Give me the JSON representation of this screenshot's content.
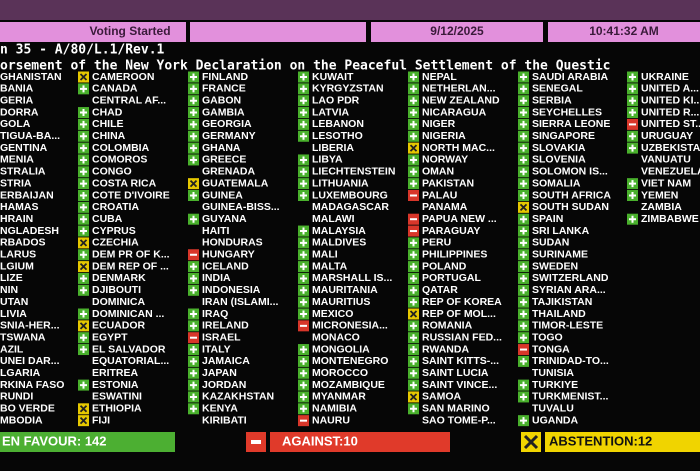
{
  "header": {
    "status": "Voting Started",
    "date": "9/12/2025",
    "time": "10:41:32 AM"
  },
  "item": "n 35 - A/80/L.1/Rev.1",
  "title": "orsement of the New York Declaration on the Peaceful Settlement of the Questic",
  "columns": [
    [
      {
        "name": "GHANISTAN"
      },
      {
        "name": "BANIA"
      },
      {
        "name": "GERIA"
      },
      {
        "name": "DORRA"
      },
      {
        "name": "GOLA"
      },
      {
        "name": "TIGUA-BA..."
      },
      {
        "name": "GENTINA"
      },
      {
        "name": "MENIA"
      },
      {
        "name": "STRALIA"
      },
      {
        "name": "STRIA"
      },
      {
        "name": "ERBAIJAN"
      },
      {
        "name": "HAMAS"
      },
      {
        "name": "HRAIN"
      },
      {
        "name": "NGLADESH"
      },
      {
        "name": "RBADOS"
      },
      {
        "name": "LARUS"
      },
      {
        "name": "LGIUM"
      },
      {
        "name": "LIZE"
      },
      {
        "name": "NIN"
      },
      {
        "name": "UTAN"
      },
      {
        "name": "LIVIA"
      },
      {
        "name": "SNIA-HER..."
      },
      {
        "name": "TSWANA"
      },
      {
        "name": "AZIL"
      },
      {
        "name": "UNEI DAR..."
      },
      {
        "name": "LGARIA"
      },
      {
        "name": "RKINA FASO"
      },
      {
        "name": "RUNDI"
      },
      {
        "name": "BO VERDE"
      },
      {
        "name": "MBODIA"
      }
    ],
    [
      {
        "name": "CAMEROON",
        "v": "A"
      },
      {
        "name": "CANADA",
        "v": "Y"
      },
      {
        "name": "CENTRAL AF..."
      },
      {
        "name": "CHAD",
        "v": "Y"
      },
      {
        "name": "CHILE",
        "v": "Y"
      },
      {
        "name": "CHINA",
        "v": "Y"
      },
      {
        "name": "COLOMBIA",
        "v": "Y"
      },
      {
        "name": "COMOROS",
        "v": "Y"
      },
      {
        "name": "CONGO",
        "v": "Y"
      },
      {
        "name": "COSTA RICA",
        "v": "Y"
      },
      {
        "name": "COTE D'IVOIRE",
        "v": "Y"
      },
      {
        "name": "CROATIA",
        "v": "Y"
      },
      {
        "name": "CUBA",
        "v": "Y"
      },
      {
        "name": "CYPRUS",
        "v": "Y"
      },
      {
        "name": "CZECHIA",
        "v": "A"
      },
      {
        "name": "DEM PR OF K...",
        "v": "Y"
      },
      {
        "name": "DEM REP OF ...",
        "v": "A"
      },
      {
        "name": "DENMARK",
        "v": "Y"
      },
      {
        "name": "DJIBOUTI",
        "v": "Y"
      },
      {
        "name": "DOMINICA"
      },
      {
        "name": "DOMINICAN ...",
        "v": "Y"
      },
      {
        "name": "ECUADOR",
        "v": "A"
      },
      {
        "name": "EGYPT",
        "v": "Y"
      },
      {
        "name": "EL SALVADOR",
        "v": "Y"
      },
      {
        "name": "EQUATORIAL..."
      },
      {
        "name": "ERITREA"
      },
      {
        "name": "ESTONIA",
        "v": "Y"
      },
      {
        "name": "ESWATINI"
      },
      {
        "name": "ETHIOPIA",
        "v": "A"
      },
      {
        "name": "FIJI",
        "v": "A"
      }
    ],
    [
      {
        "name": "FINLAND",
        "v": "Y"
      },
      {
        "name": "FRANCE",
        "v": "Y"
      },
      {
        "name": "GABON",
        "v": "Y"
      },
      {
        "name": "GAMBIA",
        "v": "Y"
      },
      {
        "name": "GEORGIA",
        "v": "Y"
      },
      {
        "name": "GERMANY",
        "v": "Y"
      },
      {
        "name": "GHANA",
        "v": "Y"
      },
      {
        "name": "GREECE",
        "v": "Y"
      },
      {
        "name": "GRENADA"
      },
      {
        "name": "GUATEMALA",
        "v": "A"
      },
      {
        "name": "GUINEA",
        "v": "Y"
      },
      {
        "name": "GUINEA-BISS..."
      },
      {
        "name": "GUYANA",
        "v": "Y"
      },
      {
        "name": "HAITI"
      },
      {
        "name": "HONDURAS"
      },
      {
        "name": "HUNGARY",
        "v": "N"
      },
      {
        "name": "ICELAND",
        "v": "Y"
      },
      {
        "name": "INDIA",
        "v": "Y"
      },
      {
        "name": "INDONESIA",
        "v": "Y"
      },
      {
        "name": "IRAN (ISLAMI..."
      },
      {
        "name": "IRAQ",
        "v": "Y"
      },
      {
        "name": "IRELAND",
        "v": "Y"
      },
      {
        "name": "ISRAEL",
        "v": "N"
      },
      {
        "name": "ITALY",
        "v": "Y"
      },
      {
        "name": "JAMAICA",
        "v": "Y"
      },
      {
        "name": "JAPAN",
        "v": "Y"
      },
      {
        "name": "JORDAN",
        "v": "Y"
      },
      {
        "name": "KAZAKHSTAN",
        "v": "Y"
      },
      {
        "name": "KENYA",
        "v": "Y"
      },
      {
        "name": "KIRIBATI"
      }
    ],
    [
      {
        "name": "KUWAIT",
        "v": "Y"
      },
      {
        "name": "KYRGYZSTAN",
        "v": "Y"
      },
      {
        "name": "LAO PDR",
        "v": "Y"
      },
      {
        "name": "LATVIA",
        "v": "Y"
      },
      {
        "name": "LEBANON",
        "v": "Y"
      },
      {
        "name": "LESOTHO",
        "v": "Y"
      },
      {
        "name": "LIBERIA"
      },
      {
        "name": "LIBYA",
        "v": "Y"
      },
      {
        "name": "LIECHTENSTEIN",
        "v": "Y"
      },
      {
        "name": "LITHUANIA",
        "v": "Y"
      },
      {
        "name": "LUXEMBOURG",
        "v": "Y"
      },
      {
        "name": "MADAGASCAR"
      },
      {
        "name": "MALAWI"
      },
      {
        "name": "MALAYSIA",
        "v": "Y"
      },
      {
        "name": "MALDIVES",
        "v": "Y"
      },
      {
        "name": "MALI",
        "v": "Y"
      },
      {
        "name": "MALTA",
        "v": "Y"
      },
      {
        "name": "MARSHALL IS...",
        "v": "Y"
      },
      {
        "name": "MAURITANIA",
        "v": "Y"
      },
      {
        "name": "MAURITIUS",
        "v": "Y"
      },
      {
        "name": "MEXICO",
        "v": "Y"
      },
      {
        "name": "MICRONESIA...",
        "v": "N"
      },
      {
        "name": "MONACO"
      },
      {
        "name": "MONGOLIA",
        "v": "Y"
      },
      {
        "name": "MONTENEGRO",
        "v": "Y"
      },
      {
        "name": "MOROCCO",
        "v": "Y"
      },
      {
        "name": "MOZAMBIQUE",
        "v": "Y"
      },
      {
        "name": "MYANMAR",
        "v": "Y"
      },
      {
        "name": "NAMIBIA",
        "v": "Y"
      },
      {
        "name": "NAURU",
        "v": "N"
      }
    ],
    [
      {
        "name": "NEPAL",
        "v": "Y"
      },
      {
        "name": "NETHERLAN...",
        "v": "Y"
      },
      {
        "name": "NEW ZEALAND",
        "v": "Y"
      },
      {
        "name": "NICARAGUA",
        "v": "Y"
      },
      {
        "name": "NIGER",
        "v": "Y"
      },
      {
        "name": "NIGERIA",
        "v": "Y"
      },
      {
        "name": "NORTH MAC...",
        "v": "A"
      },
      {
        "name": "NORWAY",
        "v": "Y"
      },
      {
        "name": "OMAN",
        "v": "Y"
      },
      {
        "name": "PAKISTAN",
        "v": "Y"
      },
      {
        "name": "PALAU",
        "v": "N"
      },
      {
        "name": "PANAMA"
      },
      {
        "name": "PAPUA NEW ...",
        "v": "N"
      },
      {
        "name": "PARAGUAY",
        "v": "N"
      },
      {
        "name": "PERU",
        "v": "Y"
      },
      {
        "name": "PHILIPPINES",
        "v": "Y"
      },
      {
        "name": "POLAND",
        "v": "Y"
      },
      {
        "name": "PORTUGAL",
        "v": "Y"
      },
      {
        "name": "QATAR",
        "v": "Y"
      },
      {
        "name": "REP OF KOREA",
        "v": "Y"
      },
      {
        "name": "REP OF MOL...",
        "v": "A"
      },
      {
        "name": "ROMANIA",
        "v": "Y"
      },
      {
        "name": "RUSSIAN FED...",
        "v": "Y"
      },
      {
        "name": "RWANDA",
        "v": "Y"
      },
      {
        "name": "SAINT KITTS-...",
        "v": "Y"
      },
      {
        "name": "SAINT LUCIA",
        "v": "Y"
      },
      {
        "name": "SAINT VINCE...",
        "v": "Y"
      },
      {
        "name": "SAMOA",
        "v": "A"
      },
      {
        "name": "SAN MARINO",
        "v": "Y"
      },
      {
        "name": "SAO TOME-P..."
      }
    ],
    [
      {
        "name": "SAUDI ARABIA",
        "v": "Y"
      },
      {
        "name": "SENEGAL",
        "v": "Y"
      },
      {
        "name": "SERBIA",
        "v": "Y"
      },
      {
        "name": "SEYCHELLES",
        "v": "Y"
      },
      {
        "name": "SIERRA LEONE",
        "v": "Y"
      },
      {
        "name": "SINGAPORE",
        "v": "Y"
      },
      {
        "name": "SLOVAKIA",
        "v": "Y"
      },
      {
        "name": "SLOVENIA",
        "v": "Y"
      },
      {
        "name": "SOLOMON IS...",
        "v": "Y"
      },
      {
        "name": "SOMALIA",
        "v": "Y"
      },
      {
        "name": "SOUTH AFRICA",
        "v": "Y"
      },
      {
        "name": "SOUTH SUDAN",
        "v": "A"
      },
      {
        "name": "SPAIN",
        "v": "Y"
      },
      {
        "name": "SRI LANKA",
        "v": "Y"
      },
      {
        "name": "SUDAN",
        "v": "Y"
      },
      {
        "name": "SURINAME",
        "v": "Y"
      },
      {
        "name": "SWEDEN",
        "v": "Y"
      },
      {
        "name": "SWITZERLAND",
        "v": "Y"
      },
      {
        "name": "SYRIAN ARA...",
        "v": "Y"
      },
      {
        "name": "TAJIKISTAN",
        "v": "Y"
      },
      {
        "name": "THAILAND",
        "v": "Y"
      },
      {
        "name": "TIMOR-LESTE",
        "v": "Y"
      },
      {
        "name": "TOGO",
        "v": "Y"
      },
      {
        "name": "TONGA",
        "v": "N"
      },
      {
        "name": "TRINIDAD-TO...",
        "v": "Y"
      },
      {
        "name": "TUNISIA"
      },
      {
        "name": "TURKIYE",
        "v": "Y"
      },
      {
        "name": "TURKMENIST...",
        "v": "Y"
      },
      {
        "name": "TUVALU"
      },
      {
        "name": "UGANDA",
        "v": "Y"
      }
    ],
    [
      {
        "name": "UKRAINE",
        "v": "Y"
      },
      {
        "name": "UNITED A...",
        "v": "Y"
      },
      {
        "name": "UNITED KI...",
        "v": "Y"
      },
      {
        "name": "UNITED R...",
        "v": "Y"
      },
      {
        "name": "UNITED ST...",
        "v": "N"
      },
      {
        "name": "URUGUAY",
        "v": "Y"
      },
      {
        "name": "UZBEKISTA...",
        "v": "Y"
      },
      {
        "name": "VANUATU"
      },
      {
        "name": "VENEZUELA"
      },
      {
        "name": "VIET NAM",
        "v": "Y"
      },
      {
        "name": "YEMEN",
        "v": "Y"
      },
      {
        "name": "ZAMBIA"
      },
      {
        "name": "ZIMBABWE",
        "v": "Y"
      }
    ]
  ],
  "totals": {
    "favour": "EN FAVOUR: 142",
    "against": "AGAINST:10",
    "abstention": "ABSTENTION:12"
  }
}
